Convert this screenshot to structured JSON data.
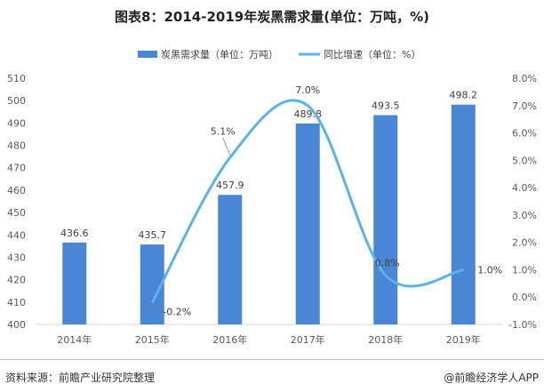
{
  "title": "图表8：2014-2019年炭黑需求量(单位：万吨，%)",
  "source": "资料来源：前瞻产业研究院整理",
  "brand": "@前瞻经济学人APP",
  "colors": {
    "bar": "#4a86d6",
    "line": "#5ab2ec"
  },
  "chart_data": {
    "type": "bar+line",
    "categories": [
      "2014年",
      "2015年",
      "2016年",
      "2017年",
      "2018年",
      "2019年"
    ],
    "series": [
      {
        "name": "炭黑需求量（单位：万吨）",
        "type": "bar",
        "axis": "left",
        "values": [
          436.6,
          435.7,
          457.9,
          489.8,
          493.5,
          498.2
        ],
        "labels": [
          "436.6",
          "435.7",
          "457.9",
          "489.8",
          "493.5",
          "498.2"
        ]
      },
      {
        "name": "同比增速（单位：%）",
        "type": "line",
        "axis": "right",
        "values": [
          null,
          -0.2,
          5.1,
          7.0,
          0.8,
          1.0
        ],
        "labels": [
          "",
          "-0.2%",
          "5.1%",
          "7.0%",
          "0.8%",
          "1.0%"
        ]
      }
    ],
    "y_left": {
      "min": 400,
      "max": 510,
      "step": 10
    },
    "y_right": {
      "min": -1.0,
      "max": 8.0,
      "step": 1.0,
      "ticks": [
        "-1.0%",
        "0.0%",
        "1.0%",
        "2.0%",
        "3.0%",
        "4.0%",
        "5.0%",
        "6.0%",
        "7.0%",
        "8.0%"
      ]
    },
    "legend_position": "top",
    "grid": false
  }
}
